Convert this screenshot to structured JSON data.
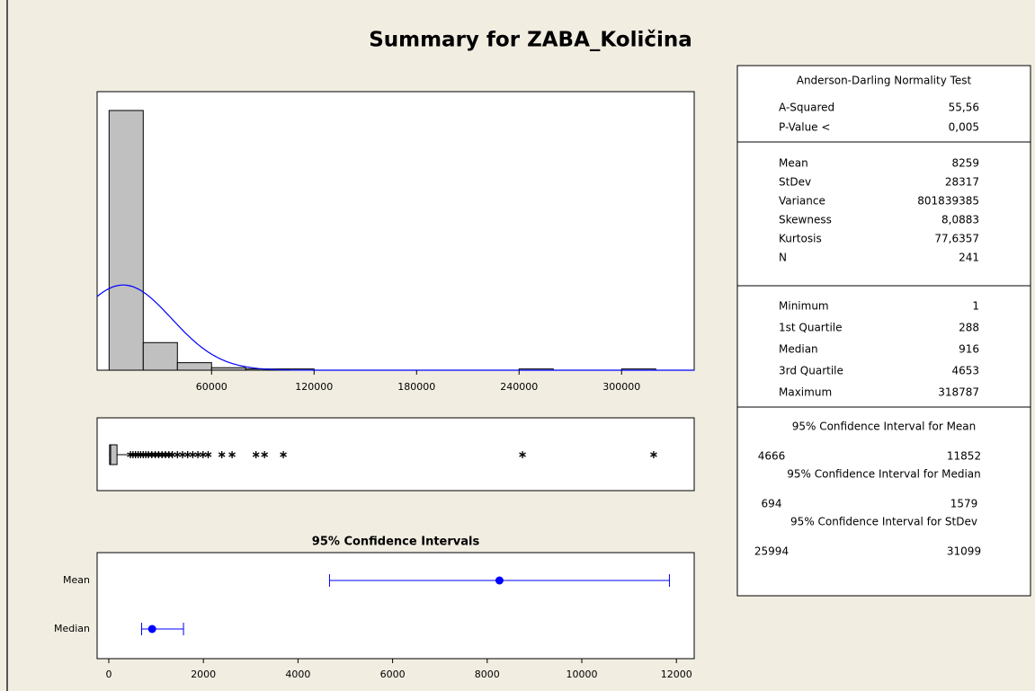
{
  "title": "Summary for ZABA_Količina",
  "chart_data": [
    {
      "type": "histogram",
      "bins": [
        0,
        20000,
        40000,
        60000,
        80000,
        100000,
        120000,
        140000,
        160000,
        180000,
        200000,
        220000,
        240000,
        260000,
        280000,
        300000,
        320000
      ],
      "counts": [
        207,
        22,
        6,
        2,
        1,
        1,
        0,
        0,
        0,
        0,
        0,
        0,
        1,
        0,
        0,
        1
      ],
      "color": "#c0c0c0",
      "xlim": [
        -7000,
        342500
      ],
      "ylim": [
        0,
        222
      ],
      "xticks": [
        60000,
        120000,
        180000,
        240000,
        300000
      ],
      "fit": {
        "mean": 8259,
        "stdev": 28317,
        "n": 241,
        "color": "#0000ff"
      }
    },
    {
      "type": "boxplot",
      "xlim": [
        -7000,
        342500
      ],
      "color": "#c0c0c0",
      "min": 1,
      "q1": 288,
      "median": 916,
      "q3": 4653,
      "whisker_high": 11000,
      "outliers": [
        12500,
        14000,
        15500,
        17000,
        18500,
        20000,
        21500,
        23000,
        25000,
        27000,
        29000,
        31000,
        33000,
        35000,
        37000,
        40000,
        43000,
        46000,
        49000,
        52000,
        55000,
        58000,
        66000,
        72000,
        86000,
        91000,
        102000,
        242000,
        318787
      ]
    },
    {
      "type": "interval",
      "title": "95% Confidence Intervals",
      "categories": [
        "Mean",
        "Median"
      ],
      "estimates": [
        8259,
        916
      ],
      "lower": [
        4666,
        694
      ],
      "upper": [
        11852,
        1579
      ],
      "color": "#0000ff",
      "xlim": [
        -247,
        12376
      ],
      "xticks": [
        0,
        2000,
        4000,
        6000,
        8000,
        10000,
        12000
      ]
    }
  ],
  "stats": {
    "sections": [
      {
        "title": "Anderson-Darling Normality Test",
        "rows": [
          {
            "label": "A-Squared",
            "value": "55,56"
          },
          {
            "label": "P-Value <",
            "value": "0,005"
          }
        ]
      },
      {
        "rows": [
          {
            "label": "Mean",
            "value": "8259"
          },
          {
            "label": "StDev",
            "value": "28317"
          },
          {
            "label": "Variance",
            "value": "801839385"
          },
          {
            "label": "Skewness",
            "value": "8,0883"
          },
          {
            "label": "Kurtosis",
            "value": "77,6357"
          },
          {
            "label": "N",
            "value": "241"
          }
        ]
      },
      {
        "rows": [
          {
            "label": "Minimum",
            "value": "1"
          },
          {
            "label": "1st Quartile",
            "value": "288"
          },
          {
            "label": "Median",
            "value": "916"
          },
          {
            "label": "3rd Quartile",
            "value": "4653"
          },
          {
            "label": "Maximum",
            "value": "318787"
          }
        ]
      }
    ],
    "intervals": [
      {
        "title": "95% Confidence Interval for Mean",
        "lower": "4666",
        "upper": "11852"
      },
      {
        "title": "95% Confidence Interval for Median",
        "lower": "694",
        "upper": "1579"
      },
      {
        "title": "95% Confidence Interval for StDev",
        "lower": "25994",
        "upper": "31099"
      }
    ]
  }
}
